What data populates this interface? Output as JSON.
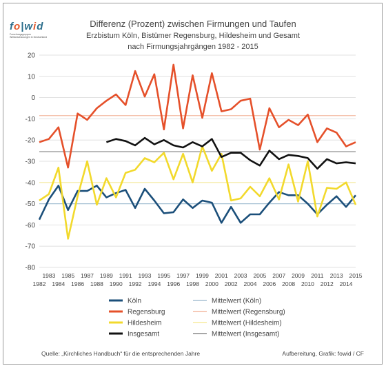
{
  "logo": {
    "brand_part1": "f",
    "brand_o": "o",
    "brand_part2": "w",
    "brand_i": "i",
    "brand_part3": "d",
    "tagline": "Forschungsgruppen Weltanschauungen in Deutschland"
  },
  "chart_data": {
    "type": "line",
    "title": "Differenz (Prozent) zwischen Firmungen und Taufen",
    "subtitle_line1": "Erzbistum Köln, Bistümer Regensburg, Hildesheim und Gesamt",
    "subtitle_line2": "nach Firmungsjahrgängen 1982 - 2015",
    "xlabel": "",
    "ylabel": "",
    "ylim": [
      -80,
      20
    ],
    "yticks": [
      20,
      10,
      0,
      -10,
      -20,
      -30,
      -40,
      -50,
      -60,
      -70,
      -80
    ],
    "x": [
      1982,
      1983,
      1984,
      1985,
      1986,
      1987,
      1988,
      1989,
      1990,
      1991,
      1992,
      1993,
      1994,
      1995,
      1996,
      1997,
      1998,
      1999,
      2000,
      2001,
      2002,
      2003,
      2004,
      2005,
      2006,
      2007,
      2008,
      2009,
      2010,
      2011,
      2012,
      2013,
      2014,
      2015
    ],
    "xticks_bottom": [
      "1982",
      "1984",
      "1986",
      "1988",
      "1990",
      "1992",
      "1994",
      "1996",
      "1998",
      "2000",
      "2002",
      "2004",
      "2006",
      "2008",
      "2010",
      "2012",
      "2014"
    ],
    "xticks_top": [
      "1983",
      "1985",
      "1987",
      "1989",
      "1991",
      "1993",
      "1995",
      "1997",
      "1999",
      "2001",
      "2003",
      "2005",
      "2007",
      "2009",
      "2011",
      "2013",
      "2015"
    ],
    "grid": true,
    "legend_position": "bottom",
    "series": [
      {
        "name": "Köln",
        "color": "#1b4f7a",
        "values": [
          -57.5,
          -48,
          -41.5,
          -53,
          -44,
          -44,
          -41.5,
          -47,
          -45,
          -43.5,
          -52,
          -43,
          -48.5,
          -54.5,
          -54,
          -48,
          -52,
          -48.5,
          -49.5,
          -59,
          -51.5,
          -59,
          -55,
          -55,
          -49.5,
          -44.5,
          -46,
          -46,
          -50,
          -55,
          -50.5,
          -46.5,
          -51.5,
          -46
        ]
      },
      {
        "name": "Regensburg",
        "color": "#e5502a",
        "values": [
          -21,
          -19.5,
          -14,
          -33,
          -7.5,
          -10.5,
          -5,
          -1.5,
          1.5,
          -3.5,
          12.5,
          0.5,
          11,
          -15,
          15.5,
          -14.5,
          10.5,
          -9.5,
          11.5,
          -6.5,
          -5.5,
          -1.5,
          -0.5,
          -24.5,
          -5,
          -14,
          -10.5,
          -13,
          -8,
          -21,
          -14.5,
          -16.5,
          -23,
          -21
        ]
      },
      {
        "name": "Hildesheim",
        "color": "#f2d92c",
        "values": [
          -48.5,
          -45.5,
          -33,
          -66.5,
          -46.5,
          -30,
          -50.5,
          -38,
          -47,
          -35.5,
          -34,
          -28.5,
          -30.5,
          -26,
          -38.5,
          -26.5,
          -40,
          -23,
          -34.5,
          -26.5,
          -48.5,
          -47.5,
          -42,
          -46.5,
          -38,
          -48,
          -31.5,
          -49,
          -30,
          -56,
          -42.5,
          -43,
          -40,
          -50.5
        ]
      },
      {
        "name": "Insgesamt",
        "color": "#111111",
        "values": [
          null,
          null,
          null,
          null,
          null,
          null,
          null,
          -21,
          -19.5,
          -20.5,
          -22.5,
          -19,
          -22,
          -20,
          -22.5,
          -23.5,
          -21,
          -23,
          -19.5,
          -28,
          -26,
          -26,
          -29.5,
          -32,
          -25,
          -29,
          -27,
          -27.5,
          -28.5,
          -33.5,
          -29,
          -31,
          -30.5,
          -31
        ]
      }
    ],
    "reference_lines": [
      {
        "name": "Mittelwert (Köln)",
        "value": -50,
        "color": "#a7c1d4"
      },
      {
        "name": "Mittelwert (Regensburg)",
        "value": -8.5,
        "color": "#f3b8a0"
      },
      {
        "name": "Mittelwert (Hildesheim)",
        "value": -40,
        "color": "#f7ec9e"
      },
      {
        "name": "Mittelwert (Insgesamt)",
        "value": -25.5,
        "color": "#8a8a8a"
      }
    ]
  },
  "footer": {
    "source": "Quelle: „Kirchliches Handbuch“ für die entsprechenden Jahre",
    "credit": "Aufbereitung, Grafik: fowid / CF"
  }
}
